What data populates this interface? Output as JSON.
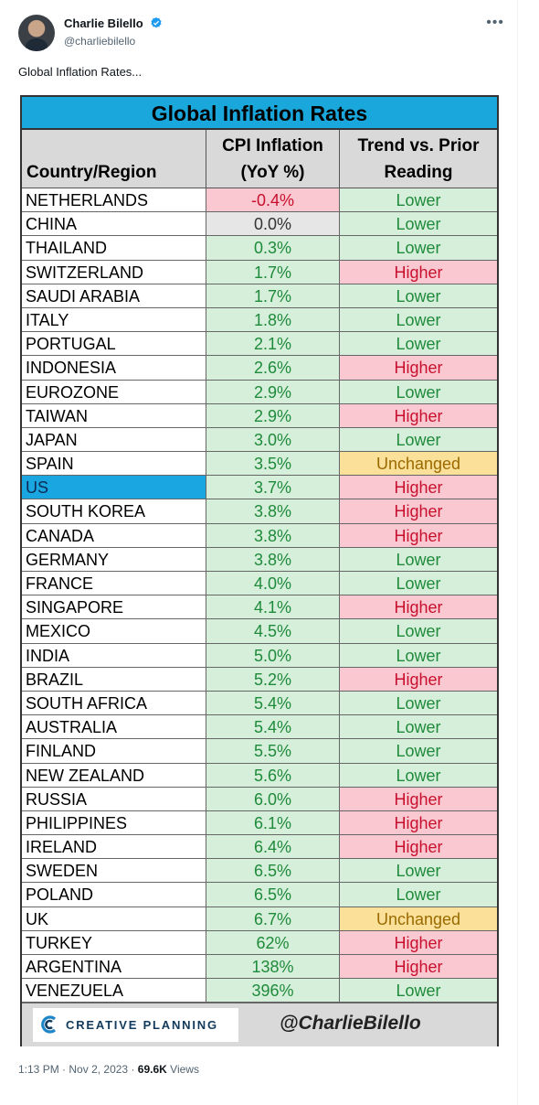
{
  "tweet": {
    "author_name": "Charlie Bilello",
    "handle": "@charliebilello",
    "text": "Global Inflation Rates...",
    "time": "1:13 PM",
    "date": "Nov 2, 2023",
    "views_count": "69.6K",
    "views_label": "Views",
    "separator": "·"
  },
  "table": {
    "title": "Global Inflation Rates",
    "headers": {
      "country": "Country/Region",
      "cpi_line1": "CPI Inflation",
      "cpi_line2": "(YoY %)",
      "trend_line1": "Trend vs. Prior",
      "trend_line2": "Reading"
    },
    "rows": [
      {
        "country": "NETHERLANDS",
        "cpi": "-0.4%",
        "trend": "Lower",
        "cpi_status": "negative"
      },
      {
        "country": "CHINA",
        "cpi": "0.0%",
        "trend": "Lower",
        "cpi_status": "zero"
      },
      {
        "country": "THAILAND",
        "cpi": "0.3%",
        "trend": "Lower",
        "cpi_status": "positive"
      },
      {
        "country": "SWITZERLAND",
        "cpi": "1.7%",
        "trend": "Higher",
        "cpi_status": "positive"
      },
      {
        "country": "SAUDI ARABIA",
        "cpi": "1.7%",
        "trend": "Lower",
        "cpi_status": "positive"
      },
      {
        "country": "ITALY",
        "cpi": "1.8%",
        "trend": "Lower",
        "cpi_status": "positive"
      },
      {
        "country": "PORTUGAL",
        "cpi": "2.1%",
        "trend": "Lower",
        "cpi_status": "positive"
      },
      {
        "country": "INDONESIA",
        "cpi": "2.6%",
        "trend": "Higher",
        "cpi_status": "positive"
      },
      {
        "country": "EUROZONE",
        "cpi": "2.9%",
        "trend": "Lower",
        "cpi_status": "positive"
      },
      {
        "country": "TAIWAN",
        "cpi": "2.9%",
        "trend": "Higher",
        "cpi_status": "positive"
      },
      {
        "country": "JAPAN",
        "cpi": "3.0%",
        "trend": "Lower",
        "cpi_status": "positive"
      },
      {
        "country": "SPAIN",
        "cpi": "3.5%",
        "trend": "Unchanged",
        "cpi_status": "positive"
      },
      {
        "country": "US",
        "cpi": "3.7%",
        "trend": "Higher",
        "cpi_status": "positive",
        "highlight": true
      },
      {
        "country": "SOUTH KOREA",
        "cpi": "3.8%",
        "trend": "Higher",
        "cpi_status": "positive"
      },
      {
        "country": "CANADA",
        "cpi": "3.8%",
        "trend": "Higher",
        "cpi_status": "positive"
      },
      {
        "country": "GERMANY",
        "cpi": "3.8%",
        "trend": "Lower",
        "cpi_status": "positive"
      },
      {
        "country": "FRANCE",
        "cpi": "4.0%",
        "trend": "Lower",
        "cpi_status": "positive"
      },
      {
        "country": "SINGAPORE",
        "cpi": "4.1%",
        "trend": "Higher",
        "cpi_status": "positive"
      },
      {
        "country": "MEXICO",
        "cpi": "4.5%",
        "trend": "Lower",
        "cpi_status": "positive"
      },
      {
        "country": "INDIA",
        "cpi": "5.0%",
        "trend": "Lower",
        "cpi_status": "positive"
      },
      {
        "country": "BRAZIL",
        "cpi": "5.2%",
        "trend": "Higher",
        "cpi_status": "positive"
      },
      {
        "country": "SOUTH AFRICA",
        "cpi": "5.4%",
        "trend": "Lower",
        "cpi_status": "positive"
      },
      {
        "country": "AUSTRALIA",
        "cpi": "5.4%",
        "trend": "Lower",
        "cpi_status": "positive"
      },
      {
        "country": "FINLAND",
        "cpi": "5.5%",
        "trend": "Lower",
        "cpi_status": "positive"
      },
      {
        "country": "NEW ZEALAND",
        "cpi": "5.6%",
        "trend": "Lower",
        "cpi_status": "positive"
      },
      {
        "country": "RUSSIA",
        "cpi": "6.0%",
        "trend": "Higher",
        "cpi_status": "positive"
      },
      {
        "country": "PHILIPPINES",
        "cpi": "6.1%",
        "trend": "Higher",
        "cpi_status": "positive"
      },
      {
        "country": "IRELAND",
        "cpi": "6.4%",
        "trend": "Higher",
        "cpi_status": "positive"
      },
      {
        "country": "SWEDEN",
        "cpi": "6.5%",
        "trend": "Lower",
        "cpi_status": "positive"
      },
      {
        "country": "POLAND",
        "cpi": "6.5%",
        "trend": "Lower",
        "cpi_status": "positive"
      },
      {
        "country": "UK",
        "cpi": "6.7%",
        "trend": "Unchanged",
        "cpi_status": "positive"
      },
      {
        "country": "TURKEY",
        "cpi": "62%",
        "trend": "Higher",
        "cpi_status": "positive"
      },
      {
        "country": "ARGENTINA",
        "cpi": "138%",
        "trend": "Higher",
        "cpi_status": "positive"
      },
      {
        "country": "VENEZUELA",
        "cpi": "396%",
        "trend": "Lower",
        "cpi_status": "positive"
      }
    ],
    "footer": {
      "logo_text": "CREATIVE PLANNING",
      "handle": "@CharlieBilello"
    }
  },
  "colors": {
    "title_bar": "#19a7dc",
    "header_gray": "#d9d9d9",
    "green_fill": "#d5efdb",
    "red_fill": "#f9c8d0",
    "yellow_fill": "#fbe09a",
    "gray_fill": "#e6e6e6",
    "green_text": "#1f8a3a",
    "red_text": "#c8102e",
    "yellow_text": "#9a6a00",
    "us_highlight": "#1aa6e0"
  }
}
